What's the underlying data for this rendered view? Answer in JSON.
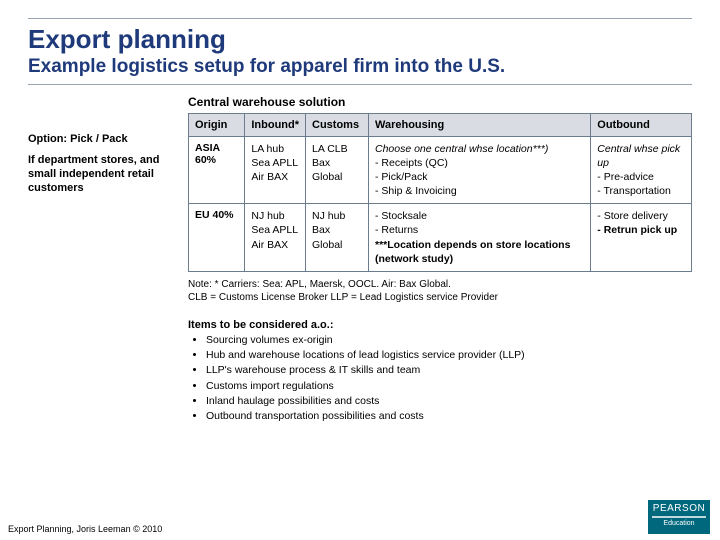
{
  "title": "Export planning",
  "subtitle": "Example logistics setup for apparel firm into the U.S.",
  "option": {
    "label": "Option:  Pick / Pack",
    "desc": "If department stores, and small independent retail customers"
  },
  "central_title": "Central warehouse solution",
  "table": {
    "headers": [
      "Origin",
      "Inbound*",
      "Customs",
      "Warehousing",
      "Outbound"
    ],
    "rows": [
      {
        "origin": "ASIA 60%",
        "inbound": [
          "LA hub",
          "Sea  APLL",
          "Air   BAX"
        ],
        "customs": [
          "LA CLB",
          "Bax Global"
        ],
        "warehousing": [
          "Choose one central whse location***)",
          "- Receipts (QC)",
          "- Pick/Pack",
          "- Ship & Invoicing"
        ],
        "warehousing_italic_first": true,
        "outbound": [
          "Central whse pick up",
          "- Pre-advice",
          "- Transportation"
        ],
        "outbound_italic_first": true
      },
      {
        "origin": "EU 40%",
        "inbound": [
          "NJ hub",
          "Sea  APLL",
          "Air   BAX"
        ],
        "customs": [
          "NJ hub",
          "Bax Global"
        ],
        "warehousing": [
          "- Stocksale",
          "- Returns",
          "***Location depends on store locations (network study)"
        ],
        "warehousing_bold_from": 2,
        "outbound": [
          "- Store delivery",
          "- Retrun pick up"
        ],
        "outbound_bold_from": 1
      }
    ]
  },
  "note_lines": [
    "Note: * Carriers: Sea: APL, Maersk, OOCL. Air: Bax Global.",
    "CLB = Customs License Broker      LLP = Lead Logistics service Provider"
  ],
  "items_title": "Items to be considered a.o.:",
  "items": [
    "Sourcing volumes ex-origin",
    "Hub and warehouse locations of lead logistics service provider (LLP)",
    "LLP's warehouse process & IT skills and team",
    "Customs import regulations",
    "Inland haulage possibilities and costs",
    "Outbound transportation possibilities and costs"
  ],
  "footer": "Export Planning, Joris Leeman © 2010",
  "logo": {
    "brand": "PEARSON",
    "sub": "Education"
  }
}
